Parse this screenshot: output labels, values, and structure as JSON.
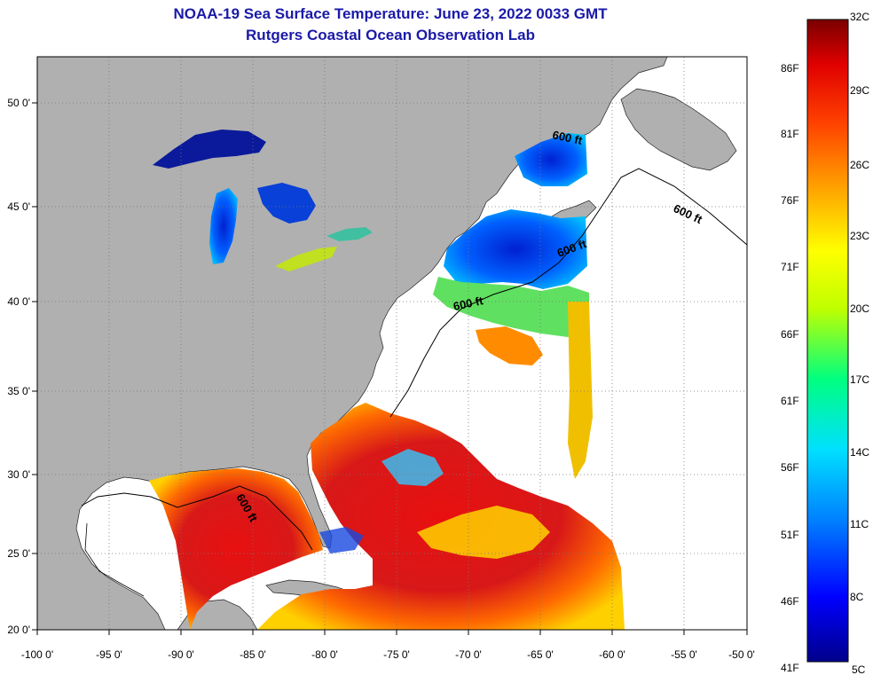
{
  "header": {
    "title": "NOAA-19 Sea Surface Temperature:  June 23, 2022 0033 GMT",
    "subtitle": "Rutgers Coastal Ocean Observation Lab"
  },
  "map": {
    "lon_range": [
      -100,
      -50
    ],
    "lat_range": [
      20,
      52
    ],
    "lon_ticks": [
      "-100 0'",
      "-95 0'",
      "-90 0'",
      "-85 0'",
      "-80 0'",
      "-75 0'",
      "-70 0'",
      "-65 0'",
      "-60 0'",
      "-55 0'",
      "-50 0'"
    ],
    "lat_ticks": [
      "20 0'",
      "25 0'",
      "30 0'",
      "35 0'",
      "40 0'",
      "45 0'",
      "50 0'"
    ],
    "contour_labels": [
      "600 ft",
      "600 ft",
      "600 ft",
      "600 ft",
      "600 ft"
    ],
    "colors": {
      "land": "#b0b0b0",
      "no_data": "#ffffff",
      "grid": "#777777"
    }
  },
  "colorbar": {
    "celsius": [
      "32C",
      "29C",
      "26C",
      "23C",
      "20C",
      "17C",
      "14C",
      "11C",
      "8C",
      "5C"
    ],
    "fahrenheit": [
      "86F",
      "81F",
      "76F",
      "71F",
      "66F",
      "61F",
      "56F",
      "51F",
      "46F",
      "41F"
    ],
    "stops": [
      "#00008b",
      "#0000ff",
      "#0080ff",
      "#00e0ff",
      "#00ff80",
      "#c0ff00",
      "#ffff00",
      "#ffa000",
      "#ff4000",
      "#e00000",
      "#7a0000"
    ]
  }
}
